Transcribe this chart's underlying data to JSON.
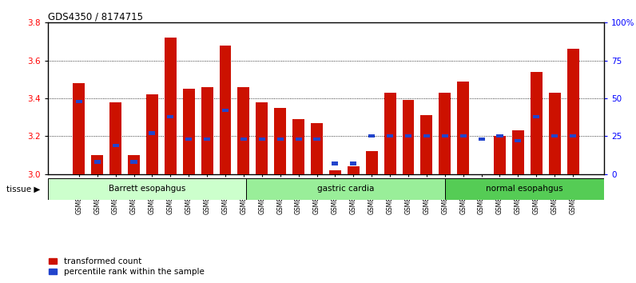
{
  "title": "GDS4350 / 8174715",
  "samples": [
    "GSM851983",
    "GSM851984",
    "GSM851985",
    "GSM851986",
    "GSM851987",
    "GSM851988",
    "GSM851989",
    "GSM851990",
    "GSM851991",
    "GSM851992",
    "GSM852001",
    "GSM852002",
    "GSM852003",
    "GSM852004",
    "GSM852005",
    "GSM852006",
    "GSM852007",
    "GSM852008",
    "GSM852009",
    "GSM852010",
    "GSM851993",
    "GSM851994",
    "GSM851995",
    "GSM851996",
    "GSM851997",
    "GSM851998",
    "GSM851999",
    "GSM852000"
  ],
  "red_values": [
    3.48,
    3.1,
    3.38,
    3.1,
    3.42,
    3.72,
    3.45,
    3.46,
    3.68,
    3.46,
    3.38,
    3.35,
    3.29,
    3.27,
    3.02,
    3.04,
    3.12,
    3.43,
    3.39,
    3.31,
    3.43,
    3.49,
    3.0,
    3.2,
    3.23,
    3.54,
    3.43,
    3.66
  ],
  "blue_fractions": [
    0.48,
    0.08,
    0.19,
    0.08,
    0.27,
    0.38,
    0.23,
    0.23,
    0.42,
    0.23,
    0.23,
    0.23,
    0.23,
    0.23,
    0.07,
    0.07,
    0.25,
    0.25,
    0.25,
    0.25,
    0.25,
    0.25,
    0.23,
    0.25,
    0.22,
    0.38,
    0.25,
    0.25
  ],
  "groups": [
    {
      "label": "Barrett esopahgus",
      "start": 0,
      "end": 10,
      "color": "#ccffcc"
    },
    {
      "label": "gastric cardia",
      "start": 10,
      "end": 20,
      "color": "#99ee99"
    },
    {
      "label": "normal esopahgus",
      "start": 20,
      "end": 28,
      "color": "#55cc55"
    }
  ],
  "ylim_left": [
    3.0,
    3.8
  ],
  "yticks_left": [
    3.0,
    3.2,
    3.4,
    3.6,
    3.8
  ],
  "ytick_labels_right": [
    "0",
    "25",
    "50",
    "75",
    "100%"
  ],
  "bar_color": "#cc1100",
  "blue_color": "#2244cc",
  "background_color": "#ffffff",
  "tissue_label": "tissue",
  "legend_red": "transformed count",
  "legend_blue": "percentile rank within the sample"
}
